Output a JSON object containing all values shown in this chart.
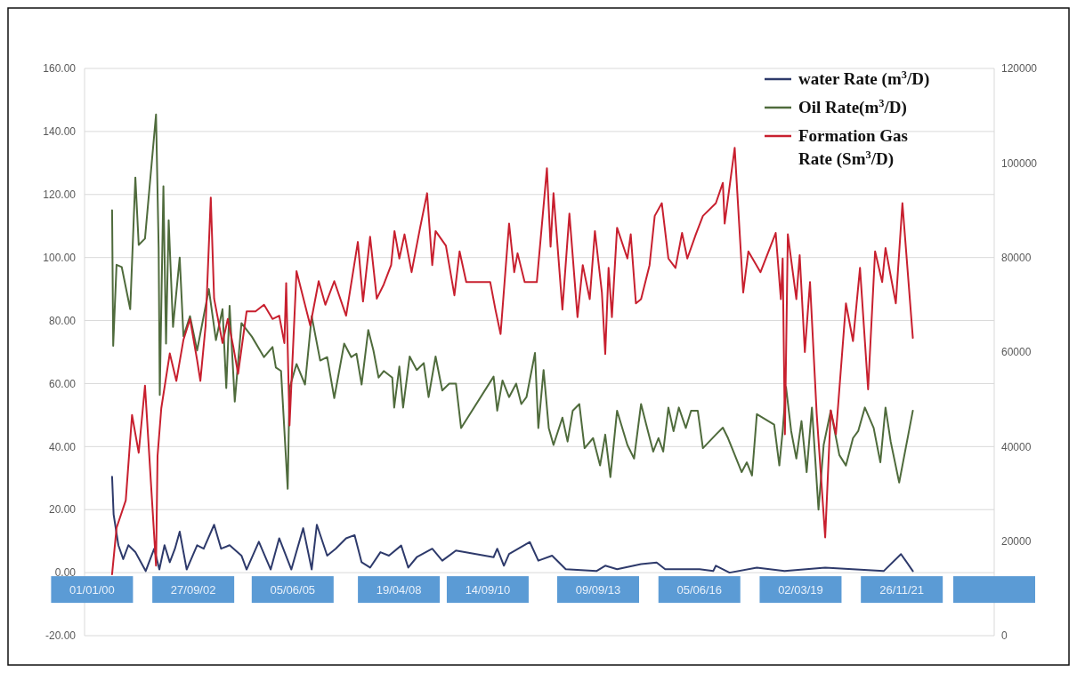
{
  "chart_data": {
    "type": "line",
    "xlim": [
      "1999-10-19",
      "2024-05-27"
    ],
    "xticks": [
      {
        "value": "2000-01-01",
        "label": "01/01/00"
      },
      {
        "value": "2002-09-27",
        "label": "27/09/02"
      },
      {
        "value": "2005-06-05",
        "label": "05/06/05"
      },
      {
        "value": "2008-04-19",
        "label": "19/04/08"
      },
      {
        "value": "2010-09-14",
        "label": "14/09/10"
      },
      {
        "value": "2013-09-09",
        "label": "09/09/13"
      },
      {
        "value": "2016-06-05",
        "label": "05/06/16"
      },
      {
        "value": "2019-03-02",
        "label": "02/03/19"
      },
      {
        "value": "2021-11-26",
        "label": "26/11/21"
      },
      {
        "value": "2024-05-27",
        "label": null
      }
    ],
    "ylim": [
      -20,
      160
    ],
    "yticks": [
      {
        "value": -20,
        "label": "-20.00"
      },
      {
        "value": 0,
        "label": "0.00"
      },
      {
        "value": 20,
        "label": "20.00"
      },
      {
        "value": 40,
        "label": "40.00"
      },
      {
        "value": 60,
        "label": "60.00"
      },
      {
        "value": 80,
        "label": "80.00"
      },
      {
        "value": 100,
        "label": "100.00"
      },
      {
        "value": 120,
        "label": "120.00"
      },
      {
        "value": 140,
        "label": "140.00"
      },
      {
        "value": 160,
        "label": "160.00"
      }
    ],
    "y2lim": [
      0,
      120000
    ],
    "y2ticks": [
      0,
      20000,
      40000,
      60000,
      80000,
      100000,
      120000
    ],
    "grid": "y",
    "legend": "top right",
    "series": [
      {
        "name": "water Rate (m$^{3}$/D)",
        "color": "#2e3a6b",
        "x": [
          "2000-07-17",
          "2000-08-01",
          "2000-09-17",
          "2000-11-04",
          "2000-12-25",
          "2001-03-04",
          "2001-06-14",
          "2001-09-06",
          "2001-10-27",
          "2001-12-17",
          "2002-02-07",
          "2002-03-30",
          "2002-05-16",
          "2002-07-24",
          "2002-11-04",
          "2003-01-08",
          "2003-04-21",
          "2003-06-29",
          "2003-09-21",
          "2004-01-16",
          "2004-03-07",
          "2004-07-06",
          "2004-10-31",
          "2005-01-23",
          "2005-05-23",
          "2005-09-17",
          "2005-12-10",
          "2006-01-30",
          "2006-05-12",
          "2006-08-04",
          "2006-11-15",
          "2007-02-07",
          "2007-04-17",
          "2007-07-10",
          "2007-10-20",
          "2008-01-12",
          "2008-05-12",
          "2008-07-21",
          "2008-10-13",
          "2009-03-15",
          "2009-06-22",
          "2009-11-04",
          "2010-11-11",
          "2010-12-17",
          "2011-02-21",
          "2011-04-13",
          "2011-11-04",
          "2012-01-27",
          "2012-06-11",
          "2012-10-24",
          "2013-08-23",
          "2013-11-18",
          "2014-03-15",
          "2014-11-07",
          "2015-04-10",
          "2015-07-03",
          "2016-06-07",
          "2016-10-20",
          "2016-11-15",
          "2017-03-30",
          "2017-12-25",
          "2018-09-24",
          "2019-10-31",
          "2021-05-31",
          "2021-11-18",
          "2022-03-15"
        ],
        "values": [
          30.4,
          18.5,
          8.7,
          4.3,
          8.7,
          6.5,
          0.5,
          7.6,
          1,
          8.7,
          3.3,
          7.6,
          13,
          1,
          8.7,
          7.6,
          15.2,
          7.6,
          8.7,
          5.4,
          1,
          9.8,
          1,
          10.9,
          1,
          14.1,
          1,
          15.2,
          5.4,
          7.6,
          10.9,
          11.9,
          3.3,
          1.6,
          6.5,
          5.4,
          8.6,
          1.6,
          4.9,
          7.6,
          3.8,
          7,
          4.9,
          7.6,
          2.2,
          5.9,
          9.7,
          3.8,
          5.4,
          1.1,
          0.5,
          2.2,
          1.1,
          2.7,
          3.2,
          1.1,
          1.1,
          0.5,
          2.2,
          0,
          1.6,
          0.5,
          1.6,
          0.5,
          5.9,
          0.5
        ]
      },
      {
        "name": "Oil Rate(m$^{3}$/D)",
        "color": "#4f6b3c",
        "x": [
          "2000-07-17",
          "2000-07-28",
          "2000-08-30",
          "2000-10-20",
          "2001-01-12",
          "2001-03-04",
          "2001-04-06",
          "2001-06-07",
          "2001-09-24",
          "2001-10-20",
          "2001-10-31",
          "2001-12-06",
          "2002-01-01",
          "2002-01-27",
          "2002-03-11",
          "2002-05-16",
          "2002-06-22",
          "2002-08-26",
          "2002-11-04",
          "2003-02-28",
          "2003-05-09",
          "2003-07-13",
          "2003-08-19",
          "2003-09-21",
          "2003-11-11",
          "2004-01-16",
          "2004-04-28",
          "2004-08-26",
          "2004-11-18",
          "2004-12-21",
          "2005-02-10",
          "2005-04-17",
          "2005-05-05",
          "2005-07-13",
          "2005-10-05",
          "2005-12-10",
          "2006-03-04",
          "2006-05-12",
          "2006-07-21",
          "2006-10-27",
          "2007-01-05",
          "2007-02-25",
          "2007-04-17",
          "2007-06-22",
          "2007-08-12",
          "2007-10-02",
          "2007-11-22",
          "2008-02-14",
          "2008-03-04",
          "2008-04-24",
          "2008-05-31",
          "2008-08-04",
          "2008-10-13",
          "2008-12-21",
          "2009-02-07",
          "2009-04-17",
          "2009-06-22",
          "2009-08-30",
          "2009-11-04",
          "2009-12-25",
          "2010-11-11",
          "2010-12-17",
          "2011-02-07",
          "2011-04-13",
          "2011-06-22",
          "2011-08-12",
          "2011-10-02",
          "2011-12-25",
          "2012-01-27",
          "2012-03-19",
          "2012-05-09",
          "2012-06-25",
          "2012-09-21",
          "2012-11-11",
          "2013-01-01",
          "2013-03-07",
          "2013-04-28",
          "2013-07-21",
          "2013-09-28",
          "2013-11-18",
          "2014-01-08",
          "2014-03-15",
          "2014-06-25",
          "2014-08-30",
          "2014-11-07",
          "2014-12-28",
          "2015-03-07",
          "2015-04-28",
          "2015-06-14",
          "2015-08-04",
          "2015-09-24",
          "2015-11-15",
          "2016-01-23",
          "2016-03-15",
          "2016-05-20",
          "2016-07-10",
          "2016-11-15",
          "2017-01-23",
          "2017-03-15",
          "2017-07-28",
          "2017-09-17",
          "2017-11-07",
          "2017-12-25",
          "2018-06-14",
          "2018-08-04",
          "2018-09-06",
          "2018-10-09",
          "2018-11-29",
          "2019-01-19",
          "2019-03-11",
          "2019-05-01",
          "2019-06-22",
          "2019-08-26",
          "2019-10-16",
          "2019-12-25",
          "2020-03-19",
          "2020-05-23",
          "2020-08-01",
          "2020-09-21",
          "2020-11-26",
          "2021-02-21",
          "2021-04-28",
          "2021-06-18",
          "2021-08-08",
          "2021-10-31",
          "2022-03-15"
        ],
        "values": [
          115,
          72,
          97.7,
          97,
          83.6,
          125.4,
          104,
          106,
          145.4,
          103,
          56.4,
          122.6,
          72.7,
          111.8,
          78,
          100,
          75,
          81.4,
          70.5,
          90,
          73.8,
          83.6,
          58.6,
          84.7,
          54.3,
          79.2,
          74.9,
          68.4,
          71.6,
          65.1,
          64,
          26.6,
          58.6,
          66.2,
          59.7,
          81.4,
          67.3,
          68.4,
          55.4,
          72.7,
          68.4,
          69.5,
          59.7,
          77,
          70.5,
          61.9,
          64,
          61.9,
          52.4,
          65.4,
          52.4,
          68.6,
          64.3,
          66.5,
          55.7,
          68.6,
          57.8,
          60,
          60,
          45.9,
          62.2,
          51.4,
          61,
          55.7,
          60,
          53.5,
          55.7,
          69.7,
          45.9,
          64.3,
          45.9,
          40.5,
          49.2,
          41.6,
          51.4,
          53.5,
          39.5,
          42.7,
          34,
          43.8,
          30.3,
          51.4,
          40.5,
          36.2,
          53.5,
          47,
          38.4,
          42.7,
          38.4,
          52.4,
          44.9,
          52.4,
          45.9,
          51.4,
          51.4,
          39.5,
          43.8,
          46,
          42.7,
          31.9,
          35,
          30.8,
          50.3,
          47,
          34,
          44.9,
          58.9,
          44.9,
          36.2,
          48.1,
          31.9,
          52.4,
          20,
          40.5,
          51.4,
          37.3,
          34,
          42.7,
          44.9,
          52.4,
          45.9,
          35,
          52.4,
          41.6,
          28.6,
          51.4
        ]
      },
      {
        "name": "Formation Gas Rate (Sm$^{3}$/D)",
        "color": "#c8202f",
        "axis": "y2",
        "x": [
          "2000-07-17",
          "2000-08-30",
          "2000-11-29",
          "2001-01-30",
          "2001-04-06",
          "2001-06-07",
          "2001-09-24",
          "2001-10-09",
          "2001-11-15",
          "2002-02-07",
          "2002-04-13",
          "2002-06-22",
          "2002-08-26",
          "2002-11-04",
          "2002-12-06",
          "2003-01-27",
          "2003-03-19",
          "2003-04-21",
          "2003-05-23",
          "2003-07-13",
          "2003-09-03",
          "2003-10-27",
          "2003-12-14",
          "2004-03-07",
          "2004-06-03",
          "2004-08-26",
          "2004-11-18",
          "2005-01-23",
          "2005-03-15",
          "2005-04-02",
          "2005-05-05",
          "2005-07-13",
          "2005-11-26",
          "2006-02-17",
          "2006-04-24",
          "2006-07-21",
          "2006-11-15",
          "2007-03-11",
          "2007-05-01",
          "2007-07-10",
          "2007-09-14",
          "2007-11-22",
          "2008-02-03",
          "2008-03-07",
          "2008-04-24",
          "2008-06-14",
          "2008-08-23",
          "2008-11-15",
          "2009-01-23",
          "2009-03-15",
          "2009-04-17",
          "2009-07-28",
          "2009-10-20",
          "2009-12-10",
          "2010-02-14",
          "2010-10-09",
          "2010-11-29",
          "2011-01-19",
          "2011-04-13",
          "2011-06-03",
          "2011-07-06",
          "2011-09-14",
          "2012-01-12",
          "2012-04-21",
          "2012-05-27",
          "2012-06-25",
          "2012-09-21",
          "2012-11-29",
          "2013-02-17",
          "2013-04-10",
          "2013-06-18",
          "2013-08-08",
          "2013-10-16",
          "2013-11-18",
          "2013-12-21",
          "2014-01-23",
          "2014-03-15",
          "2014-06-25",
          "2014-07-28",
          "2014-09-17",
          "2014-11-07",
          "2015-01-30",
          "2015-03-22",
          "2015-05-31",
          "2015-08-04",
          "2015-10-13",
          "2015-12-17",
          "2016-02-07",
          "2016-05-01",
          "2016-07-10",
          "2016-11-15",
          "2017-01-23",
          "2017-02-10",
          "2017-05-20",
          "2017-08-12",
          "2017-10-02",
          "2018-01-30",
          "2018-06-29",
          "2018-08-19",
          "2018-09-06",
          "2018-09-28",
          "2018-10-27",
          "2019-01-19",
          "2019-02-21",
          "2019-04-13",
          "2019-06-03",
          "2019-08-08",
          "2019-10-31",
          "2019-12-25",
          "2020-02-14",
          "2020-05-23",
          "2020-08-01",
          "2020-10-09",
          "2020-12-28",
          "2021-03-07",
          "2021-05-16",
          "2021-06-18",
          "2021-09-28",
          "2021-12-02",
          "2022-03-15"
        ],
        "values": [
          13000,
          22800,
          28600,
          46700,
          38700,
          52900,
          14800,
          38000,
          48100,
          59700,
          53900,
          62600,
          67000,
          58300,
          53900,
          65600,
          92700,
          71300,
          67700,
          61900,
          67000,
          61200,
          55400,
          68600,
          68600,
          70000,
          67000,
          67700,
          61900,
          74600,
          44500,
          77100,
          65600,
          75000,
          70000,
          75000,
          67700,
          83300,
          70700,
          84400,
          71300,
          74300,
          78400,
          85600,
          79800,
          84900,
          76900,
          86300,
          93600,
          78400,
          85600,
          82500,
          72000,
          81300,
          74800,
          74800,
          69000,
          63800,
          87200,
          76900,
          80900,
          74800,
          74800,
          98900,
          82300,
          93600,
          69000,
          89300,
          67400,
          78400,
          71200,
          85600,
          72600,
          59600,
          77800,
          67400,
          86300,
          79800,
          84900,
          70300,
          71200,
          78400,
          88800,
          91500,
          79800,
          77800,
          85200,
          79800,
          84900,
          88800,
          91500,
          95800,
          87200,
          103200,
          72600,
          81300,
          76900,
          85200,
          71200,
          79800,
          42600,
          84900,
          71200,
          80500,
          60000,
          74800,
          47000,
          20800,
          47700,
          42600,
          70300,
          62300,
          77800,
          52100,
          81300,
          74800,
          82000,
          70300,
          91500,
          63000
        ]
      }
    ]
  }
}
